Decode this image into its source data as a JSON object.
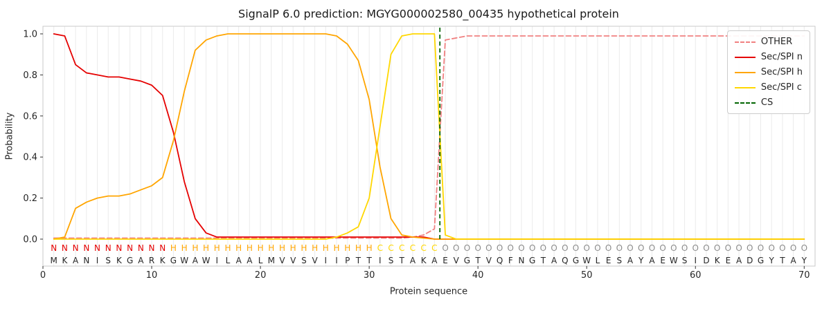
{
  "chart_data": {
    "type": "line",
    "title": "SignalP 6.0 prediction: MGYG000002580_00435 hypothetical protein",
    "xlabel": "Protein sequence",
    "ylabel": "Probability",
    "xlim": [
      0,
      71
    ],
    "ylim": [
      -0.05,
      1.05
    ],
    "x_ticks": [
      0,
      10,
      20,
      30,
      40,
      50,
      60,
      70
    ],
    "y_ticks": [
      0.0,
      0.2,
      0.4,
      0.6,
      0.8,
      1.0
    ],
    "grid": "vertical line per residue, light gray",
    "sequence": "MKANISKGARKGWAWILAALMVVSVIIPTTISTAKAEVGTVQFNGTAQGWLESAYAEWSIDKEADGYTAY",
    "regions": [
      {
        "letter": "N",
        "start": 1,
        "end": 11,
        "color": "#e50000"
      },
      {
        "letter": "H",
        "start": 12,
        "end": 30,
        "color": "#ffa500"
      },
      {
        "letter": "C",
        "start": 31,
        "end": 36,
        "color": "#ffd700"
      },
      {
        "letter": "O",
        "start": 37,
        "end": 70,
        "color": "#8c8c8c"
      }
    ],
    "series": [
      {
        "name": "OTHER",
        "color": "#f08080",
        "dashed": true,
        "values": [
          0.005,
          0.005,
          0.005,
          0.005,
          0.005,
          0.005,
          0.005,
          0.005,
          0.005,
          0.005,
          0.005,
          0.005,
          0.005,
          0.005,
          0.005,
          0.005,
          0.005,
          0.005,
          0.005,
          0.005,
          0.005,
          0.005,
          0.005,
          0.005,
          0.005,
          0.005,
          0.005,
          0.005,
          0.005,
          0.005,
          0.005,
          0.005,
          0.005,
          0.01,
          0.02,
          0.05,
          0.97,
          0.98,
          0.99,
          0.99,
          0.99,
          0.99,
          0.99,
          0.99,
          0.99,
          0.99,
          0.99,
          0.99,
          0.99,
          0.99,
          0.99,
          0.99,
          0.99,
          0.99,
          0.99,
          0.99,
          0.99,
          0.99,
          0.99,
          0.99,
          0.99,
          0.99,
          0.99,
          0.99,
          0.99,
          0.99,
          0.99,
          0.99,
          0.99,
          0.99
        ]
      },
      {
        "name": "Sec/SPI n",
        "color": "#e50000",
        "dashed": false,
        "values": [
          1.0,
          0.99,
          0.85,
          0.81,
          0.8,
          0.79,
          0.79,
          0.78,
          0.77,
          0.75,
          0.7,
          0.52,
          0.28,
          0.1,
          0.03,
          0.01,
          0.01,
          0.01,
          0.01,
          0.01,
          0.01,
          0.01,
          0.01,
          0.01,
          0.01,
          0.01,
          0.01,
          0.01,
          0.01,
          0.01,
          0.01,
          0.01,
          0.01,
          0.01,
          0.01,
          0.0,
          0.0,
          0.0,
          0.0,
          0.0,
          0.0,
          0.0,
          0.0,
          0.0,
          0.0,
          0.0,
          0.0,
          0.0,
          0.0,
          0.0,
          0.0,
          0.0,
          0.0,
          0.0,
          0.0,
          0.0,
          0.0,
          0.0,
          0.0,
          0.0,
          0.0,
          0.0,
          0.0,
          0.0,
          0.0,
          0.0,
          0.0,
          0.0,
          0.0,
          0.0
        ]
      },
      {
        "name": "Sec/SPI h",
        "color": "#ffa500",
        "dashed": false,
        "values": [
          0.0,
          0.01,
          0.15,
          0.18,
          0.2,
          0.21,
          0.21,
          0.22,
          0.24,
          0.26,
          0.3,
          0.48,
          0.72,
          0.92,
          0.97,
          0.99,
          1.0,
          1.0,
          1.0,
          1.0,
          1.0,
          1.0,
          1.0,
          1.0,
          1.0,
          1.0,
          0.99,
          0.95,
          0.87,
          0.68,
          0.35,
          0.1,
          0.02,
          0.01,
          0.005,
          0.0,
          0.0,
          0.0,
          0.0,
          0.0,
          0.0,
          0.0,
          0.0,
          0.0,
          0.0,
          0.0,
          0.0,
          0.0,
          0.0,
          0.0,
          0.0,
          0.0,
          0.0,
          0.0,
          0.0,
          0.0,
          0.0,
          0.0,
          0.0,
          0.0,
          0.0,
          0.0,
          0.0,
          0.0,
          0.0,
          0.0,
          0.0,
          0.0,
          0.0,
          0.0
        ]
      },
      {
        "name": "Sec/SPI c",
        "color": "#ffd700",
        "dashed": false,
        "values": [
          0.0,
          0.0,
          0.0,
          0.0,
          0.0,
          0.0,
          0.0,
          0.0,
          0.0,
          0.0,
          0.0,
          0.0,
          0.0,
          0.0,
          0.0,
          0.0,
          0.0,
          0.0,
          0.0,
          0.0,
          0.0,
          0.0,
          0.0,
          0.0,
          0.0,
          0.0,
          0.01,
          0.03,
          0.06,
          0.2,
          0.55,
          0.9,
          0.99,
          1.0,
          1.0,
          1.0,
          0.02,
          0.0,
          0.0,
          0.0,
          0.0,
          0.0,
          0.0,
          0.0,
          0.0,
          0.0,
          0.0,
          0.0,
          0.0,
          0.0,
          0.0,
          0.0,
          0.0,
          0.0,
          0.0,
          0.0,
          0.0,
          0.0,
          0.0,
          0.0,
          0.0,
          0.0,
          0.0,
          0.0,
          0.0,
          0.0,
          0.0,
          0.0,
          0.0,
          0.0
        ]
      }
    ],
    "cs": {
      "name": "CS",
      "position": 36.5,
      "color": "#006400",
      "dashed": true
    },
    "legend": {
      "position": "upper right",
      "entries": [
        {
          "label": "OTHER",
          "color": "#f08080",
          "dashed": true
        },
        {
          "label": "Sec/SPI n",
          "color": "#e50000",
          "dashed": false
        },
        {
          "label": "Sec/SPI h",
          "color": "#ffa500",
          "dashed": false
        },
        {
          "label": "Sec/SPI c",
          "color": "#ffd700",
          "dashed": false
        },
        {
          "label": "CS",
          "color": "#006400",
          "dashed": true
        }
      ]
    }
  }
}
